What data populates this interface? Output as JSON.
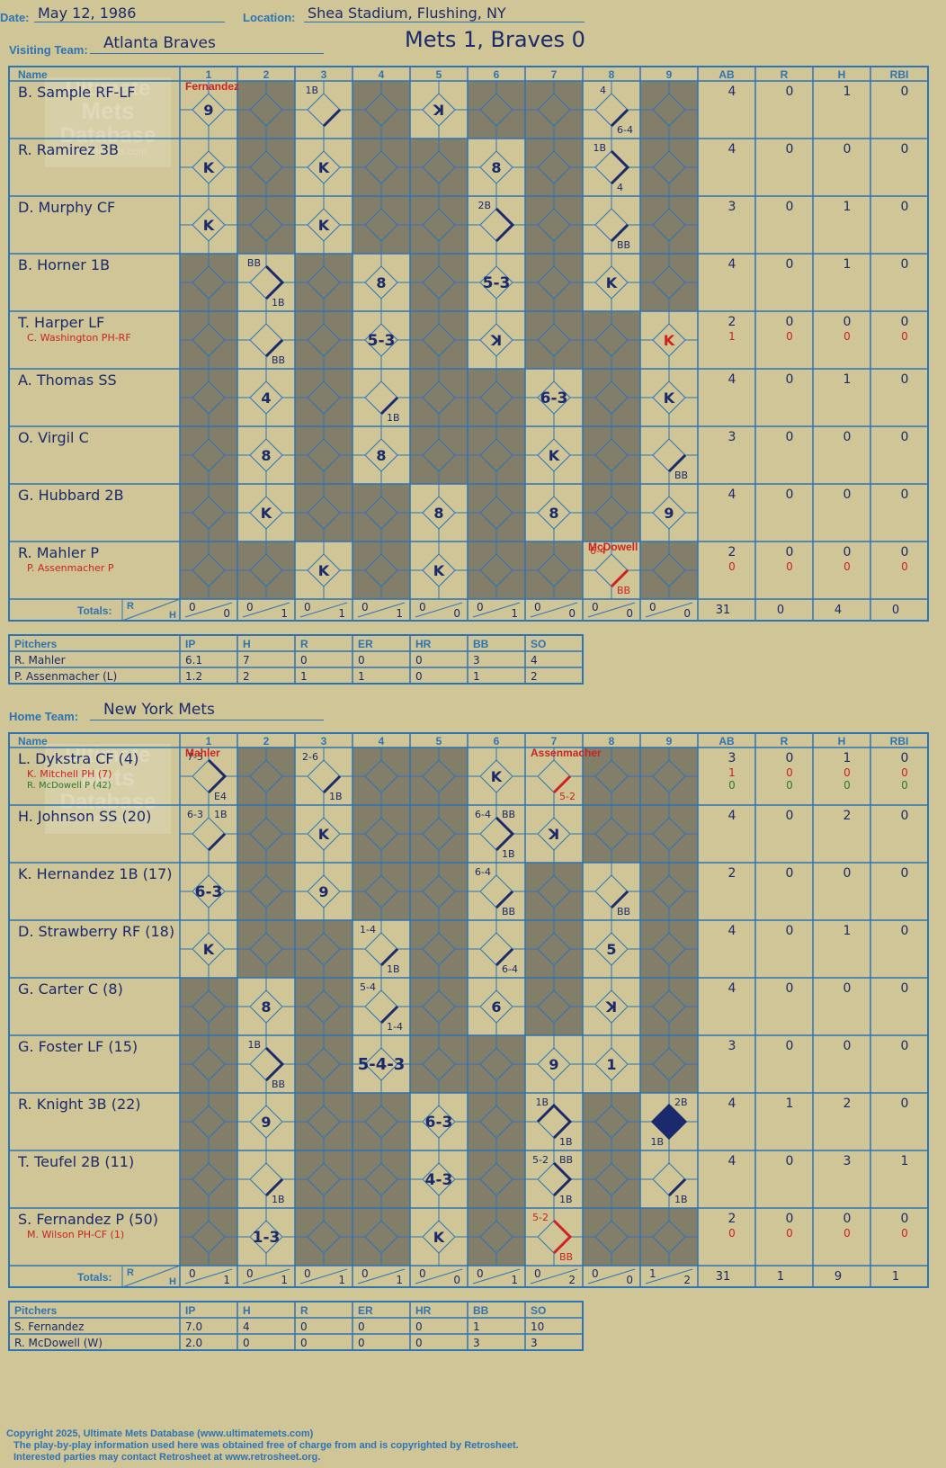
{
  "header": {
    "date_label": "Date:",
    "date": "May 12, 1986",
    "location_label": "Location:",
    "location": "Shea Stadium, Flushing, NY",
    "visiting_label": "Visiting Team:",
    "visiting_team": "Atlanta Braves",
    "home_label": "Home Team:",
    "home_team": "New York Mets",
    "result": "Mets 1, Braves 0"
  },
  "columns": {
    "name": "Name",
    "innings": [
      "1",
      "2",
      "3",
      "4",
      "5",
      "6",
      "7",
      "8",
      "9"
    ],
    "stats": [
      "AB",
      "R",
      "H",
      "RBI"
    ],
    "totals_label": "Totals:",
    "r_label": "R",
    "h_label": "H"
  },
  "watermark": {
    "line1": "Ultimate",
    "line2": "Mets",
    "line3": "Database",
    "url": "ultimatemets.com"
  },
  "colors": {
    "background": "#cfc597",
    "grid": "#2d74b5",
    "shaded": "#837e6a",
    "ink": "#1a2a6c",
    "red": "#cc2222",
    "green": "#2a7a2a"
  },
  "visitors": {
    "shaded": [
      [
        0,
        1,
        0,
        1,
        0,
        1,
        1,
        0,
        1
      ],
      [
        0,
        1,
        0,
        1,
        1,
        0,
        1,
        0,
        1
      ],
      [
        0,
        1,
        0,
        1,
        1,
        0,
        1,
        0,
        1
      ],
      [
        1,
        0,
        1,
        0,
        1,
        0,
        1,
        0,
        1
      ],
      [
        1,
        0,
        1,
        0,
        1,
        0,
        1,
        1,
        0
      ],
      [
        1,
        0,
        1,
        0,
        1,
        1,
        0,
        1,
        0
      ],
      [
        1,
        0,
        1,
        0,
        1,
        1,
        0,
        1,
        0
      ],
      [
        1,
        0,
        1,
        1,
        0,
        1,
        0,
        1,
        0
      ],
      [
        1,
        1,
        0,
        1,
        0,
        1,
        1,
        0,
        1
      ]
    ],
    "players": [
      {
        "name": "B. Sample RF-LF",
        "sub": "",
        "stats": [
          "4",
          "0",
          "1",
          "0"
        ],
        "sub_stats": []
      },
      {
        "name": "R. Ramirez 3B",
        "sub": "",
        "stats": [
          "4",
          "0",
          "0",
          "0"
        ],
        "sub_stats": []
      },
      {
        "name": "D. Murphy CF",
        "sub": "",
        "stats": [
          "3",
          "0",
          "1",
          "0"
        ],
        "sub_stats": []
      },
      {
        "name": "B. Horner 1B",
        "sub": "",
        "stats": [
          "4",
          "0",
          "1",
          "0"
        ],
        "sub_stats": []
      },
      {
        "name": "T. Harper LF",
        "sub": "C. Washington PH-RF",
        "stats": [
          "2",
          "0",
          "0",
          "0"
        ],
        "sub_stats": [
          "1",
          "0",
          "0",
          "0"
        ]
      },
      {
        "name": "A. Thomas SS",
        "sub": "",
        "stats": [
          "4",
          "0",
          "1",
          "0"
        ],
        "sub_stats": []
      },
      {
        "name": "O. Virgil C",
        "sub": "",
        "stats": [
          "3",
          "0",
          "0",
          "0"
        ],
        "sub_stats": []
      },
      {
        "name": "G. Hubbard 2B",
        "sub": "",
        "stats": [
          "4",
          "0",
          "0",
          "0"
        ],
        "sub_stats": []
      },
      {
        "name": "R. Mahler P",
        "sub": "P. Assenmacher P",
        "stats": [
          "2",
          "0",
          "0",
          "0"
        ],
        "sub_stats": [
          "0",
          "0",
          "0",
          "0"
        ]
      }
    ],
    "notes": [
      {
        "r": 0,
        "c": 0,
        "text": "Fernandez",
        "color": "red",
        "pos": "top"
      },
      {
        "r": 8,
        "c": 7,
        "text": "McDowell",
        "color": "red",
        "pos": "top"
      }
    ],
    "plays": [
      {
        "r": 0,
        "c": 0,
        "center": "9"
      },
      {
        "r": 0,
        "c": 2,
        "tl": "1B",
        "path": "1"
      },
      {
        "r": 0,
        "c": 4,
        "center": "ꓘ"
      },
      {
        "r": 0,
        "c": 7,
        "tl": "4",
        "br": "6-4",
        "path": "1"
      },
      {
        "r": 1,
        "c": 0,
        "center": "K"
      },
      {
        "r": 1,
        "c": 2,
        "center": "K"
      },
      {
        "r": 1,
        "c": 5,
        "center": "8"
      },
      {
        "r": 1,
        "c": 7,
        "tl": "1B",
        "br": "4",
        "path": "2"
      },
      {
        "r": 2,
        "c": 0,
        "center": "K"
      },
      {
        "r": 2,
        "c": 2,
        "center": "K"
      },
      {
        "r": 2,
        "c": 5,
        "tl": "2B",
        "path": "2"
      },
      {
        "r": 2,
        "c": 7,
        "br": "BB",
        "path": "1"
      },
      {
        "r": 3,
        "c": 1,
        "tl": "BB",
        "br": "1B",
        "path": "2"
      },
      {
        "r": 3,
        "c": 3,
        "center": "8"
      },
      {
        "r": 3,
        "c": 5,
        "center": "5-3"
      },
      {
        "r": 3,
        "c": 7,
        "center": "K"
      },
      {
        "r": 4,
        "c": 1,
        "br": "BB",
        "path": "1"
      },
      {
        "r": 4,
        "c": 3,
        "center": "5-3"
      },
      {
        "r": 4,
        "c": 5,
        "center": "ꓘ"
      },
      {
        "r": 4,
        "c": 8,
        "center": "K",
        "color": "red"
      },
      {
        "r": 5,
        "c": 1,
        "center": "4"
      },
      {
        "r": 5,
        "c": 3,
        "br": "1B",
        "path": "1"
      },
      {
        "r": 5,
        "c": 6,
        "center": "6-3"
      },
      {
        "r": 5,
        "c": 8,
        "center": "K"
      },
      {
        "r": 6,
        "c": 1,
        "center": "8"
      },
      {
        "r": 6,
        "c": 3,
        "center": "8"
      },
      {
        "r": 6,
        "c": 6,
        "center": "K"
      },
      {
        "r": 6,
        "c": 8,
        "br": "BB",
        "path": "1"
      },
      {
        "r": 7,
        "c": 1,
        "center": "K"
      },
      {
        "r": 7,
        "c": 4,
        "center": "8"
      },
      {
        "r": 7,
        "c": 6,
        "center": "8"
      },
      {
        "r": 7,
        "c": 8,
        "center": "9"
      },
      {
        "r": 8,
        "c": 2,
        "center": "K"
      },
      {
        "r": 8,
        "c": 4,
        "center": "K"
      },
      {
        "r": 8,
        "c": 7,
        "tl": "6-4",
        "br": "BB",
        "path": "1",
        "color": "red"
      }
    ],
    "totals": {
      "innings": [
        [
          "0",
          "0"
        ],
        [
          "0",
          "1"
        ],
        [
          "0",
          "1"
        ],
        [
          "0",
          "1"
        ],
        [
          "0",
          "0"
        ],
        [
          "0",
          "1"
        ],
        [
          "0",
          "0"
        ],
        [
          "0",
          "0"
        ],
        [
          "0",
          "0"
        ]
      ],
      "stats": [
        "31",
        "0",
        "4",
        "0"
      ]
    },
    "pitchers": {
      "header": [
        "Pitchers",
        "IP",
        "H",
        "R",
        "ER",
        "HR",
        "BB",
        "SO"
      ],
      "rows": [
        [
          "R. Mahler",
          "6.1",
          "7",
          "0",
          "0",
          "0",
          "3",
          "4"
        ],
        [
          "P. Assenmacher (L)",
          "1.2",
          "2",
          "1",
          "1",
          "0",
          "1",
          "2"
        ]
      ]
    }
  },
  "home": {
    "shaded": [
      [
        0,
        1,
        0,
        1,
        1,
        0,
        0,
        1,
        1
      ],
      [
        0,
        1,
        0,
        1,
        1,
        0,
        0,
        1,
        1
      ],
      [
        0,
        1,
        0,
        1,
        1,
        0,
        1,
        0,
        1
      ],
      [
        0,
        1,
        1,
        0,
        1,
        0,
        1,
        0,
        1
      ],
      [
        1,
        0,
        1,
        0,
        1,
        0,
        1,
        0,
        1
      ],
      [
        1,
        0,
        1,
        0,
        1,
        1,
        0,
        0,
        1
      ],
      [
        1,
        0,
        1,
        1,
        0,
        1,
        0,
        1,
        0
      ],
      [
        1,
        0,
        1,
        1,
        0,
        1,
        0,
        1,
        0
      ],
      [
        1,
        0,
        1,
        1,
        0,
        1,
        0,
        1,
        1
      ]
    ],
    "players": [
      {
        "name": "L. Dykstra CF (4)",
        "sub": "K. Mitchell PH (7)",
        "sub2": "R. McDowell P (42)",
        "stats": [
          "3",
          "0",
          "1",
          "0"
        ],
        "sub_stats": [
          "1",
          "0",
          "0",
          "0"
        ],
        "sub2_stats": [
          "0",
          "0",
          "0",
          "0"
        ]
      },
      {
        "name": "H. Johnson SS (20)",
        "sub": "",
        "stats": [
          "4",
          "0",
          "2",
          "0"
        ],
        "sub_stats": []
      },
      {
        "name": "K. Hernandez 1B (17)",
        "sub": "",
        "stats": [
          "2",
          "0",
          "0",
          "0"
        ],
        "sub_stats": []
      },
      {
        "name": "D. Strawberry RF (18)",
        "sub": "",
        "stats": [
          "4",
          "0",
          "1",
          "0"
        ],
        "sub_stats": []
      },
      {
        "name": "G. Carter C (8)",
        "sub": "",
        "stats": [
          "4",
          "0",
          "0",
          "0"
        ],
        "sub_stats": []
      },
      {
        "name": "G. Foster LF (15)",
        "sub": "",
        "stats": [
          "3",
          "0",
          "0",
          "0"
        ],
        "sub_stats": []
      },
      {
        "name": "R. Knight 3B (22)",
        "sub": "",
        "stats": [
          "4",
          "1",
          "2",
          "0"
        ],
        "sub_stats": []
      },
      {
        "name": "T. Teufel 2B (11)",
        "sub": "",
        "stats": [
          "4",
          "0",
          "3",
          "1"
        ],
        "sub_stats": []
      },
      {
        "name": "S. Fernandez P (50)",
        "sub": "M. Wilson PH-CF (1)",
        "stats": [
          "2",
          "0",
          "0",
          "0"
        ],
        "sub_stats": [
          "0",
          "0",
          "0",
          "0"
        ]
      }
    ],
    "notes": [
      {
        "r": 0,
        "c": 0,
        "text": "Mahler",
        "color": "red",
        "pos": "top"
      },
      {
        "r": 0,
        "c": 6,
        "text": "Assenmacher",
        "color": "red",
        "pos": "top"
      }
    ],
    "plays": [
      {
        "r": 0,
        "c": 0,
        "tl": "7-5",
        "br": "E4",
        "path": "2"
      },
      {
        "r": 0,
        "c": 2,
        "tl": "2-6",
        "br": "1B",
        "path": "1"
      },
      {
        "r": 0,
        "c": 5,
        "center": "K"
      },
      {
        "r": 0,
        "c": 6,
        "br": "5-2",
        "path": "1",
        "color": "red"
      },
      {
        "r": 1,
        "c": 0,
        "tl": "6-3",
        "tr": "1B",
        "path": "1"
      },
      {
        "r": 1,
        "c": 2,
        "center": "K"
      },
      {
        "r": 1,
        "c": 5,
        "tl": "6-4",
        "tr": "BB",
        "br": "1B",
        "path": "2"
      },
      {
        "r": 1,
        "c": 6,
        "center": "ꓘ"
      },
      {
        "r": 2,
        "c": 0,
        "center": "6-3"
      },
      {
        "r": 2,
        "c": 2,
        "center": "9"
      },
      {
        "r": 2,
        "c": 5,
        "tl": "6-4",
        "br": "BB",
        "path": "1"
      },
      {
        "r": 2,
        "c": 7,
        "br": "BB",
        "path": "1"
      },
      {
        "r": 3,
        "c": 0,
        "center": "K"
      },
      {
        "r": 3,
        "c": 3,
        "tl": "1-4",
        "br": "1B",
        "path": "1"
      },
      {
        "r": 3,
        "c": 5,
        "br": "6-4",
        "path": "1"
      },
      {
        "r": 3,
        "c": 7,
        "center": "5"
      },
      {
        "r": 4,
        "c": 1,
        "center": "8"
      },
      {
        "r": 4,
        "c": 3,
        "tl": "5-4",
        "br": "1-4",
        "path": "1"
      },
      {
        "r": 4,
        "c": 5,
        "center": "6"
      },
      {
        "r": 4,
        "c": 7,
        "center": "ꓘ"
      },
      {
        "r": 5,
        "c": 1,
        "tl": "1B",
        "br": "BB",
        "path": "2"
      },
      {
        "r": 5,
        "c": 3,
        "center": "5-4-3"
      },
      {
        "r": 5,
        "c": 6,
        "center": "9"
      },
      {
        "r": 5,
        "c": 7,
        "center": "1"
      },
      {
        "r": 6,
        "c": 1,
        "center": "9"
      },
      {
        "r": 6,
        "c": 4,
        "center": "6-3"
      },
      {
        "r": 6,
        "c": 6,
        "tl": "1B",
        "br": "1B",
        "path": "3"
      },
      {
        "r": 6,
        "c": 8,
        "tr": "2B",
        "bl": "1B",
        "path": "4"
      },
      {
        "r": 7,
        "c": 1,
        "br": "1B",
        "path": "1"
      },
      {
        "r": 7,
        "c": 4,
        "center": "4-3"
      },
      {
        "r": 7,
        "c": 6,
        "tl": "5-2",
        "tr": "BB",
        "br": "1B",
        "path": "2"
      },
      {
        "r": 7,
        "c": 8,
        "br": "1B",
        "path": "1"
      },
      {
        "r": 8,
        "c": 1,
        "center": "1-3"
      },
      {
        "r": 8,
        "c": 4,
        "center": "K"
      },
      {
        "r": 8,
        "c": 6,
        "tl": "5-2",
        "br": "BB",
        "path": "2",
        "color": "red"
      }
    ],
    "totals": {
      "innings": [
        [
          "0",
          "1"
        ],
        [
          "0",
          "1"
        ],
        [
          "0",
          "1"
        ],
        [
          "0",
          "1"
        ],
        [
          "0",
          "0"
        ],
        [
          "0",
          "1"
        ],
        [
          "0",
          "2"
        ],
        [
          "0",
          "0"
        ],
        [
          "1",
          "2"
        ]
      ],
      "stats": [
        "31",
        "1",
        "9",
        "1"
      ]
    },
    "pitchers": {
      "header": [
        "Pitchers",
        "IP",
        "H",
        "R",
        "ER",
        "HR",
        "BB",
        "SO"
      ],
      "rows": [
        [
          "S. Fernandez",
          "7.0",
          "4",
          "0",
          "0",
          "0",
          "1",
          "10"
        ],
        [
          "R. McDowell (W)",
          "2.0",
          "0",
          "0",
          "0",
          "0",
          "3",
          "3"
        ]
      ]
    }
  },
  "footer": {
    "line1": "Copyright 2025, Ultimate Mets Database (www.ultimatemets.com)",
    "line2": "The play-by-play information used here was obtained free of charge from and is copyrighted by Retrosheet.",
    "line3": "Interested parties may contact Retrosheet at www.retrosheet.org."
  }
}
